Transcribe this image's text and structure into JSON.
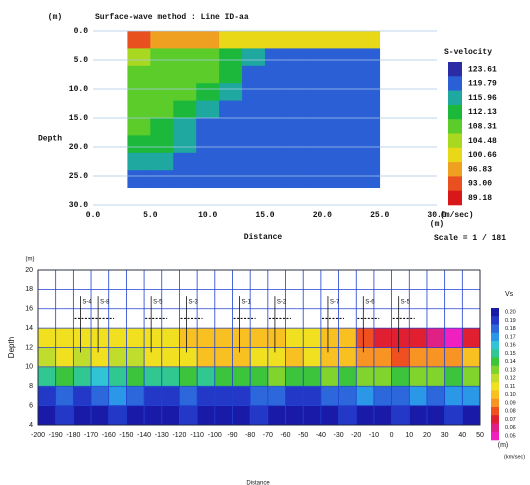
{
  "chart_data": [
    {
      "type": "contour",
      "title": "Surface-wave method  : Line ID-aa",
      "y_unit": "(m)",
      "ylabel": "Depth",
      "xlabel": "Distance",
      "x_unit": "(m)",
      "scale_note": "Scale = 1 / 181",
      "xlim": [
        0,
        30
      ],
      "ylim": [
        0,
        30
      ],
      "y_inverted": true,
      "xticks": [
        {
          "value": 0,
          "label": "0.0"
        },
        {
          "value": 5,
          "label": "5.0"
        },
        {
          "value": 10,
          "label": "10.0"
        },
        {
          "value": 15,
          "label": "15.0"
        },
        {
          "value": 20,
          "label": "20.0"
        },
        {
          "value": 25,
          "label": "25.0"
        },
        {
          "value": 30,
          "label": "30.0"
        }
      ],
      "yticks": [
        {
          "value": 0,
          "label": "0.0"
        },
        {
          "value": 5,
          "label": "5.0"
        },
        {
          "value": 10,
          "label": "10.0"
        },
        {
          "value": 15,
          "label": "15.0"
        },
        {
          "value": 20,
          "label": "20.0"
        },
        {
          "value": 25,
          "label": "25.0"
        },
        {
          "value": 30,
          "label": "30.0"
        }
      ],
      "grid": true,
      "x": [
        4,
        6,
        8,
        10,
        12,
        14,
        16,
        18,
        20,
        22,
        24
      ],
      "y": [
        1.5,
        4.5,
        7.5,
        10.5,
        13.5,
        16.5,
        19.5,
        22.5,
        25.5
      ],
      "z": [
        [
          96,
          97,
          98,
          100,
          101,
          102,
          102,
          103,
          103,
          104,
          104
        ],
        [
          108,
          109,
          110,
          111,
          113,
          116,
          123,
          123,
          123,
          123,
          123
        ],
        [
          109,
          110,
          111,
          112,
          115,
          120,
          123,
          123,
          123,
          123,
          123
        ],
        [
          110,
          111,
          112,
          114,
          118,
          123,
          123,
          123,
          123,
          123,
          123
        ],
        [
          111,
          112,
          114,
          117,
          121,
          123,
          123,
          123,
          123,
          123,
          123
        ],
        [
          112,
          113,
          116,
          120,
          123,
          123,
          123,
          123,
          123,
          123,
          123
        ],
        [
          113,
          115,
          118,
          122,
          123,
          123,
          123,
          123,
          123,
          123,
          123
        ],
        [
          116,
          118,
          121,
          123,
          123,
          123,
          123,
          123,
          123,
          123,
          123
        ],
        [
          120,
          122,
          123,
          123,
          123,
          123,
          123,
          123,
          123,
          123,
          123
        ]
      ],
      "colorbar": {
        "title": "S-velocity",
        "unit": "(m/sec)",
        "levels": [
          123.61,
          119.79,
          115.96,
          112.13,
          108.31,
          104.48,
          100.66,
          96.83,
          {
            "value": 93,
            "label": "93.00"
          },
          89.18
        ],
        "colors": [
          "#2b2ba6",
          "#2a5fd6",
          "#1fa8a0",
          "#1cb83c",
          "#5ccc2a",
          "#a8d820",
          "#e8d818",
          "#f0a020",
          "#e85020",
          "#d81818"
        ]
      }
    },
    {
      "type": "contour",
      "y_unit": "(m)",
      "ylabel": "Depth",
      "xlabel": "Distance",
      "x_unit": "(m)",
      "xlim": [
        -200,
        50
      ],
      "ylim": [
        4,
        20
      ],
      "xticks": [
        -200,
        -190,
        -180,
        -170,
        -160,
        -150,
        -140,
        -130,
        -120,
        -110,
        -100,
        -90,
        -80,
        -70,
        -60,
        -50,
        -40,
        -30,
        -20,
        -10,
        0,
        10,
        20,
        30,
        40,
        50
      ],
      "yticks": [
        4,
        6,
        8,
        10,
        12,
        14,
        16,
        18,
        20
      ],
      "grid": true,
      "stations": [
        {
          "label": "S-4",
          "x": -176
        },
        {
          "label": "S-8",
          "x": -166
        },
        {
          "label": "S-5",
          "x": -136
        },
        {
          "label": "S-3",
          "x": -116
        },
        {
          "label": "S-1",
          "x": -86
        },
        {
          "label": "S-2",
          "x": -66
        },
        {
          "label": "S-7",
          "x": -36
        },
        {
          "label": "S-6",
          "x": -16
        },
        {
          "label": "S-5",
          "x": 4
        }
      ],
      "x": [
        -195,
        -185,
        -175,
        -165,
        -155,
        -145,
        -135,
        -125,
        -115,
        -105,
        -95,
        -85,
        -75,
        -65,
        -55,
        -45,
        -35,
        -25,
        -15,
        -5,
        5,
        15,
        25,
        35,
        45
      ],
      "y": [
        5,
        7,
        9,
        11,
        13
      ],
      "z": [
        [
          0.2,
          0.19,
          0.2,
          0.2,
          0.19,
          0.2,
          0.2,
          0.2,
          0.19,
          0.2,
          0.2,
          0.2,
          0.19,
          0.2,
          0.2,
          0.2,
          0.2,
          0.19,
          0.2,
          0.2,
          0.19,
          0.2,
          0.2,
          0.19,
          0.2
        ],
        [
          0.19,
          0.18,
          0.19,
          0.18,
          0.17,
          0.18,
          0.19,
          0.19,
          0.18,
          0.19,
          0.19,
          0.19,
          0.18,
          0.18,
          0.19,
          0.19,
          0.18,
          0.18,
          0.17,
          0.18,
          0.18,
          0.17,
          0.18,
          0.17,
          0.17
        ],
        [
          0.15,
          0.14,
          0.15,
          0.16,
          0.15,
          0.14,
          0.15,
          0.15,
          0.14,
          0.15,
          0.14,
          0.14,
          0.14,
          0.13,
          0.14,
          0.14,
          0.13,
          0.14,
          0.13,
          0.13,
          0.14,
          0.13,
          0.13,
          0.14,
          0.13
        ],
        [
          0.12,
          0.11,
          0.12,
          0.11,
          0.12,
          0.12,
          0.11,
          0.11,
          0.11,
          0.1,
          0.1,
          0.1,
          0.11,
          0.11,
          0.1,
          0.11,
          0.1,
          0.1,
          0.09,
          0.09,
          0.08,
          0.09,
          0.09,
          0.09,
          0.1
        ],
        [
          0.11,
          0.11,
          0.11,
          0.11,
          0.11,
          0.11,
          0.11,
          0.11,
          0.1,
          0.1,
          0.1,
          0.1,
          0.1,
          0.1,
          0.11,
          0.11,
          0.1,
          0.1,
          0.08,
          0.07,
          0.07,
          0.07,
          0.06,
          0.05,
          0.07
        ]
      ],
      "colorbar": {
        "title": "Vs",
        "unit": "(km/sec)",
        "levels": [
          {
            "value": 0.2,
            "label": "0.20"
          },
          0.19,
          0.18,
          0.17,
          0.16,
          0.15,
          0.14,
          0.13,
          0.12,
          0.11,
          {
            "value": 0.1,
            "label": "0.10"
          },
          0.09,
          0.08,
          0.07,
          0.06,
          0.05
        ],
        "colors": [
          "#1a1aa8",
          "#2438c8",
          "#2c68dc",
          "#2a98e6",
          "#30c4d4",
          "#30c890",
          "#3cc43c",
          "#80d42c",
          "#c0dc2c",
          "#f0e020",
          "#f8c020",
          "#f89424",
          "#f05020",
          "#e02030",
          "#e02084",
          "#f020c0"
        ]
      }
    }
  ]
}
